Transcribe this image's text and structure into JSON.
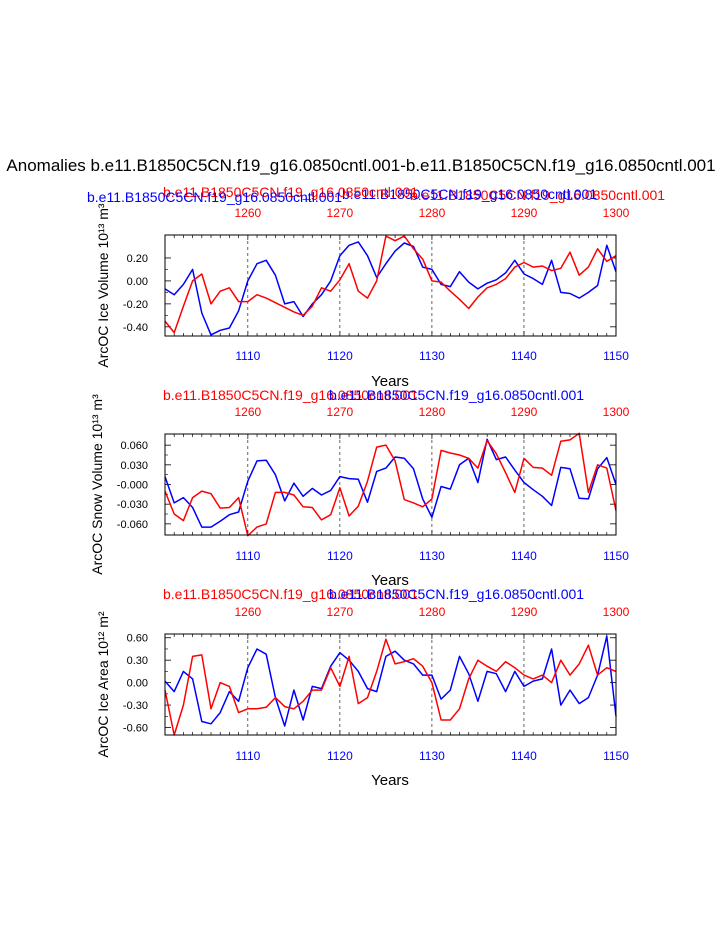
{
  "figure": {
    "main_title": "Anomalies b.e11.B1850C5CN.f19_g16.0850cntl.001-b.e11.B1850C5CN.f19_g16.0850cntl.001",
    "colors": {
      "blue": "#0000ff",
      "red": "#ff0000",
      "text": "#000000",
      "grid": "#000000"
    }
  },
  "chart_data": [
    {
      "type": "line",
      "title_red": "b.e11.B1850C5CN.f19_g16.0850cntl.001",
      "title_blue": "b.e11.B1850C5CN.f19_g16.0850cntl.001",
      "title_blue_2": "b.e11.B1850C5CN.f19_g16.0850cntl.001",
      "title_red_2": "b.e11.B1850C5CN.f19_g16.0850cntl.001",
      "ylabel": "ArcOC Ice Volume 10¹³ m³",
      "xlabel": "Years",
      "xlim_bottom": [
        1101,
        1150
      ],
      "xlim_top": [
        1251,
        1300
      ],
      "ylim": [
        -0.48,
        0.4
      ],
      "yticks": [
        -0.4,
        -0.2,
        0.0,
        0.2
      ],
      "ytick_labels": [
        "-0.40",
        "-0.20",
        "0.00",
        "0.20"
      ],
      "xticks_bottom": [
        1110,
        1120,
        1130,
        1140,
        1150
      ],
      "xtick_labels_bottom": [
        "1110",
        "1120",
        "1130",
        "1140",
        "1150"
      ],
      "xticks_top": [
        1260,
        1270,
        1280,
        1290,
        1300
      ],
      "xtick_labels_top": [
        "1260",
        "1270",
        "1280",
        "1290",
        "1300"
      ],
      "series": [
        {
          "name": "b.e11.B1850C5CN.f19_g16.0850cntl.001 (years 1101-1150)",
          "color": "blue",
          "axis": "bottom",
          "x": [
            1101,
            1102,
            1103,
            1104,
            1105,
            1106,
            1107,
            1108,
            1109,
            1110,
            1111,
            1112,
            1113,
            1114,
            1115,
            1116,
            1117,
            1118,
            1119,
            1120,
            1121,
            1122,
            1123,
            1124,
            1125,
            1126,
            1127,
            1128,
            1129,
            1130,
            1131,
            1132,
            1133,
            1134,
            1135,
            1136,
            1137,
            1138,
            1139,
            1140,
            1141,
            1142,
            1143,
            1144,
            1145,
            1146,
            1147,
            1148,
            1149,
            1150
          ],
          "values": [
            -0.07,
            -0.12,
            -0.03,
            0.1,
            -0.28,
            -0.47,
            -0.43,
            -0.41,
            -0.26,
            0.0,
            0.15,
            0.18,
            0.05,
            -0.2,
            -0.18,
            -0.31,
            -0.2,
            -0.12,
            0.0,
            0.22,
            0.31,
            0.34,
            0.22,
            0.03,
            0.15,
            0.26,
            0.33,
            0.3,
            0.12,
            0.1,
            -0.03,
            -0.05,
            0.08,
            -0.01,
            -0.07,
            -0.02,
            0.01,
            0.07,
            0.18,
            0.06,
            0.02,
            -0.03,
            0.18,
            -0.1,
            -0.11,
            -0.15,
            -0.1,
            -0.04,
            0.31,
            0.08
          ]
        },
        {
          "name": "b.e11.B1850C5CN.f19_g16.0850cntl.001 (years 1251-1300)",
          "color": "red",
          "axis": "top",
          "x": [
            1251,
            1252,
            1253,
            1254,
            1255,
            1256,
            1257,
            1258,
            1259,
            1260,
            1261,
            1262,
            1263,
            1264,
            1265,
            1266,
            1267,
            1268,
            1269,
            1270,
            1271,
            1272,
            1273,
            1274,
            1275,
            1276,
            1277,
            1278,
            1279,
            1280,
            1281,
            1282,
            1283,
            1284,
            1285,
            1286,
            1287,
            1288,
            1289,
            1290,
            1291,
            1292,
            1293,
            1294,
            1295,
            1296,
            1297,
            1298,
            1299,
            1300
          ],
          "values": [
            -0.35,
            -0.45,
            -0.22,
            0.0,
            0.06,
            -0.2,
            -0.09,
            -0.06,
            -0.18,
            -0.18,
            -0.12,
            -0.15,
            -0.19,
            -0.23,
            -0.27,
            -0.3,
            -0.22,
            -0.06,
            -0.09,
            0.01,
            0.15,
            -0.09,
            -0.15,
            0.0,
            0.39,
            0.35,
            0.39,
            0.28,
            0.19,
            0.0,
            -0.01,
            -0.09,
            -0.16,
            -0.24,
            -0.14,
            -0.06,
            -0.03,
            0.02,
            0.12,
            0.16,
            0.12,
            0.13,
            0.09,
            0.11,
            0.25,
            0.05,
            0.12,
            0.28,
            0.17,
            0.22
          ]
        }
      ]
    },
    {
      "type": "line",
      "title_red": "b.e11.B1850C5CN.f19_g16.0850cntl.001",
      "title_blue": "b.e11.B1850C5CN.f19_g16.0850cntl.001",
      "ylabel": "ArcOC Snow Volume 10¹³ m³",
      "xlabel": "Years",
      "xlim_bottom": [
        1101,
        1150
      ],
      "xlim_top": [
        1251,
        1300
      ],
      "ylim": [
        -0.077,
        0.077
      ],
      "yticks": [
        -0.06,
        -0.03,
        0.0,
        0.03,
        0.06
      ],
      "ytick_labels": [
        "-0.060",
        "-0.030",
        "-0.000",
        "0.030",
        "0.060"
      ],
      "xticks_bottom": [
        1110,
        1120,
        1130,
        1140,
        1150
      ],
      "xtick_labels_bottom": [
        "1110",
        "1120",
        "1130",
        "1140",
        "1150"
      ],
      "xticks_top": [
        1260,
        1270,
        1280,
        1290,
        1300
      ],
      "xtick_labels_top": [
        "1260",
        "1270",
        "1280",
        "1290",
        "1300"
      ],
      "series": [
        {
          "name": "b.e11.B1850C5CN.f19_g16.0850cntl.001 (years 1101-1150)",
          "color": "blue",
          "axis": "bottom",
          "x": [
            1101,
            1102,
            1103,
            1104,
            1105,
            1106,
            1107,
            1108,
            1109,
            1110,
            1111,
            1112,
            1113,
            1114,
            1115,
            1116,
            1117,
            1118,
            1119,
            1120,
            1121,
            1122,
            1123,
            1124,
            1125,
            1126,
            1127,
            1128,
            1129,
            1130,
            1131,
            1132,
            1133,
            1134,
            1135,
            1136,
            1137,
            1138,
            1139,
            1140,
            1141,
            1142,
            1143,
            1144,
            1145,
            1146,
            1147,
            1148,
            1149,
            1150
          ],
          "values": [
            0.012,
            -0.028,
            -0.02,
            -0.035,
            -0.065,
            -0.065,
            -0.056,
            -0.046,
            -0.042,
            0.005,
            0.036,
            0.037,
            0.015,
            -0.025,
            0.002,
            -0.018,
            -0.006,
            -0.016,
            -0.009,
            0.012,
            0.009,
            0.008,
            -0.027,
            0.02,
            0.025,
            0.042,
            0.04,
            0.024,
            -0.022,
            -0.05,
            -0.003,
            -0.007,
            0.03,
            0.04,
            0.003,
            0.069,
            0.038,
            0.042,
            0.022,
            0.003,
            -0.008,
            -0.018,
            -0.032,
            0.026,
            0.024,
            -0.021,
            -0.022,
            0.024,
            0.041,
            0.0
          ]
        },
        {
          "name": "b.e11.B1850C5CN.f19_g16.0850cntl.001 (years 1251-1300)",
          "color": "red",
          "axis": "top",
          "x": [
            1251,
            1252,
            1253,
            1254,
            1255,
            1256,
            1257,
            1258,
            1259,
            1260,
            1261,
            1262,
            1263,
            1264,
            1265,
            1266,
            1267,
            1268,
            1269,
            1270,
            1271,
            1272,
            1273,
            1274,
            1275,
            1276,
            1277,
            1278,
            1279,
            1280,
            1281,
            1282,
            1283,
            1284,
            1285,
            1286,
            1287,
            1288,
            1289,
            1290,
            1291,
            1292,
            1293,
            1294,
            1295,
            1296,
            1297,
            1298,
            1299,
            1300
          ],
          "values": [
            -0.01,
            -0.045,
            -0.055,
            -0.02,
            -0.01,
            -0.014,
            -0.036,
            -0.035,
            -0.02,
            -0.078,
            -0.065,
            -0.06,
            -0.012,
            -0.012,
            -0.016,
            -0.034,
            -0.035,
            -0.054,
            -0.046,
            -0.005,
            -0.048,
            -0.033,
            0.005,
            0.057,
            0.06,
            0.036,
            -0.023,
            -0.028,
            -0.034,
            -0.022,
            0.052,
            0.048,
            0.045,
            0.04,
            0.025,
            0.067,
            0.047,
            0.018,
            -0.012,
            0.04,
            0.026,
            0.025,
            0.014,
            0.066,
            0.068,
            0.078,
            -0.012,
            0.03,
            0.025,
            -0.04
          ]
        }
      ]
    },
    {
      "type": "line",
      "title_red": "b.e11.B1850C5CN.f19_g16.0850cntl.001",
      "title_blue": "b.e11.B1850C5CN.f19_g16.0850cntl.001",
      "ylabel": "ArcOC Ice Area 10¹² m²",
      "xlabel": "Years",
      "xlim_bottom": [
        1101,
        1150
      ],
      "xlim_top": [
        1251,
        1300
      ],
      "ylim": [
        -0.7,
        0.65
      ],
      "yticks": [
        -0.6,
        -0.3,
        0.0,
        0.3,
        0.6
      ],
      "ytick_labels": [
        "-0.60",
        "-0.30",
        "0.00",
        "0.30",
        "0.60"
      ],
      "xticks_bottom": [
        1110,
        1120,
        1130,
        1140,
        1150
      ],
      "xtick_labels_bottom": [
        "1110",
        "1120",
        "1130",
        "1140",
        "1150"
      ],
      "xticks_top": [
        1260,
        1270,
        1280,
        1290,
        1300
      ],
      "xtick_labels_top": [
        "1260",
        "1270",
        "1280",
        "1290",
        "1300"
      ],
      "series": [
        {
          "name": "b.e11.B1850C5CN.f19_g16.0850cntl.001 (years 1101-1150)",
          "color": "blue",
          "axis": "bottom",
          "x": [
            1101,
            1102,
            1103,
            1104,
            1105,
            1106,
            1107,
            1108,
            1109,
            1110,
            1111,
            1112,
            1113,
            1114,
            1115,
            1116,
            1117,
            1118,
            1119,
            1120,
            1121,
            1122,
            1123,
            1124,
            1125,
            1126,
            1127,
            1128,
            1129,
            1130,
            1131,
            1132,
            1133,
            1134,
            1135,
            1136,
            1137,
            1138,
            1139,
            1140,
            1141,
            1142,
            1143,
            1144,
            1145,
            1146,
            1147,
            1148,
            1149,
            1150
          ],
          "values": [
            0.02,
            -0.12,
            0.15,
            0.05,
            -0.52,
            -0.55,
            -0.4,
            -0.12,
            -0.25,
            0.2,
            0.45,
            0.38,
            -0.2,
            -0.58,
            -0.1,
            -0.5,
            -0.05,
            -0.08,
            0.22,
            0.4,
            0.3,
            0.15,
            -0.08,
            -0.12,
            0.35,
            0.42,
            0.3,
            0.25,
            0.1,
            0.1,
            -0.22,
            -0.1,
            0.35,
            0.12,
            -0.25,
            0.15,
            0.12,
            -0.12,
            0.15,
            -0.05,
            0.02,
            0.05,
            0.45,
            -0.3,
            -0.1,
            -0.28,
            -0.2,
            0.1,
            0.62,
            -0.45
          ]
        },
        {
          "name": "b.e11.B1850C5CN.f19_g16.0850cntl.001 (years 1251-1300)",
          "color": "red",
          "axis": "top",
          "x": [
            1251,
            1252,
            1253,
            1254,
            1255,
            1256,
            1257,
            1258,
            1259,
            1260,
            1261,
            1262,
            1263,
            1264,
            1265,
            1266,
            1267,
            1268,
            1269,
            1270,
            1271,
            1272,
            1273,
            1274,
            1275,
            1276,
            1277,
            1278,
            1279,
            1280,
            1281,
            1282,
            1283,
            1284,
            1285,
            1286,
            1287,
            1288,
            1289,
            1290,
            1291,
            1292,
            1293,
            1294,
            1295,
            1296,
            1297,
            1298,
            1299,
            1300
          ],
          "values": [
            -0.1,
            -0.7,
            -0.3,
            0.35,
            0.37,
            -0.35,
            0.0,
            -0.05,
            -0.4,
            -0.35,
            -0.35,
            -0.33,
            -0.2,
            -0.32,
            -0.35,
            -0.25,
            -0.1,
            -0.1,
            0.2,
            -0.05,
            0.35,
            -0.28,
            -0.2,
            0.15,
            0.58,
            0.25,
            0.28,
            0.32,
            0.22,
            0.0,
            -0.5,
            -0.5,
            -0.35,
            0.05,
            0.3,
            0.22,
            0.15,
            0.28,
            0.2,
            0.1,
            0.05,
            0.1,
            0.0,
            0.3,
            0.1,
            0.25,
            0.5,
            0.1,
            0.2,
            0.15
          ]
        }
      ]
    }
  ]
}
